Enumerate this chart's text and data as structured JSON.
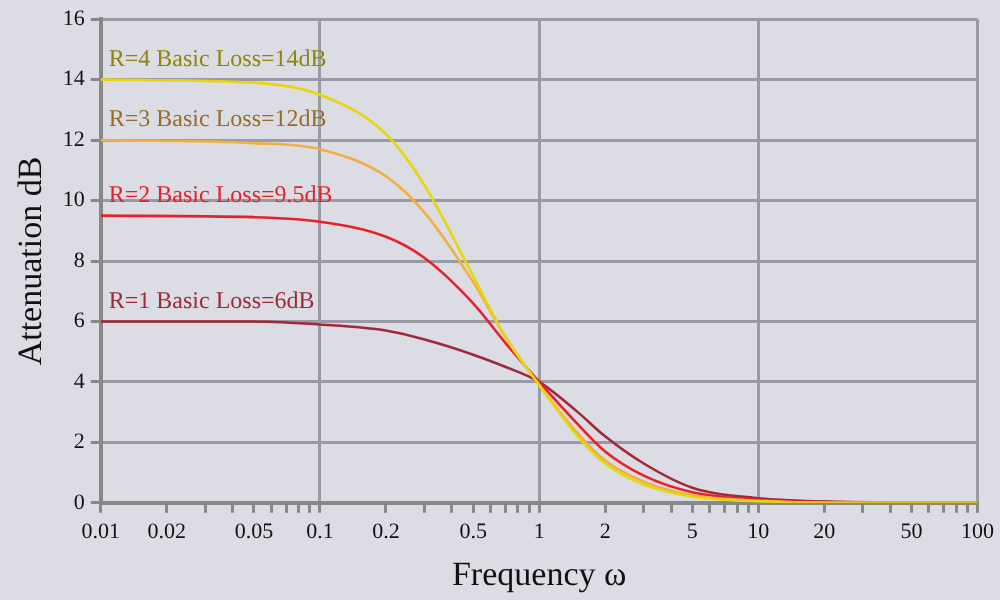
{
  "chart_data": {
    "type": "line",
    "xlabel": "Frequency ω",
    "ylabel": "Attenuation dB",
    "x": [
      0.01,
      0.05,
      0.1,
      0.2,
      0.3,
      0.5,
      0.7,
      1,
      1.5,
      2,
      3,
      5,
      10,
      20,
      100
    ],
    "series": [
      {
        "name": "R=4 Basic Loss=14dB",
        "color": "#e6d60a",
        "values": [
          14,
          13.9,
          13.5,
          12.2,
          10.5,
          7.5,
          5.5,
          3.9,
          2.2,
          1.3,
          0.6,
          0.2,
          0.05,
          0,
          0
        ]
      },
      {
        "name": "R=3 Basic Loss=12dB",
        "color": "#f0b040",
        "values": [
          12,
          11.9,
          11.7,
          10.8,
          9.6,
          7.3,
          5.5,
          3.9,
          2.3,
          1.4,
          0.7,
          0.25,
          0.07,
          0,
          0
        ]
      },
      {
        "name": "R=2 Basic Loss=9.5dB",
        "color": "#e8202a",
        "values": [
          9.5,
          9.45,
          9.3,
          8.8,
          8.1,
          6.6,
          5.3,
          4,
          2.6,
          1.7,
          0.9,
          0.35,
          0.1,
          0.03,
          0
        ]
      },
      {
        "name": "R=1 Basic Loss=6dB",
        "color": "#a02838",
        "values": [
          6,
          6,
          5.9,
          5.7,
          5.4,
          4.9,
          4.5,
          4,
          3,
          2.2,
          1.3,
          0.5,
          0.15,
          0.04,
          0
        ]
      }
    ],
    "log": "x",
    "xlim": [
      0.01,
      100
    ],
    "xticks": [
      0.01,
      0.02,
      {
        "value": 0.03,
        "label": null
      },
      {
        "value": 0.04,
        "label": null
      },
      0.05,
      {
        "value": 0.06,
        "label": null
      },
      {
        "value": 0.07,
        "label": null
      },
      {
        "value": 0.08,
        "label": null
      },
      {
        "value": 0.09,
        "label": null
      },
      0.1,
      0.2,
      {
        "value": 0.3,
        "label": null
      },
      {
        "value": 0.4,
        "label": null
      },
      0.5,
      {
        "value": 0.6,
        "label": null
      },
      {
        "value": 0.7,
        "label": null
      },
      {
        "value": 0.8,
        "label": null
      },
      {
        "value": 0.9,
        "label": null
      },
      1,
      2,
      {
        "value": 3,
        "label": null
      },
      {
        "value": 4,
        "label": null
      },
      5,
      {
        "value": 6,
        "label": null
      },
      {
        "value": 7,
        "label": null
      },
      {
        "value": 8,
        "label": null
      },
      {
        "value": 9,
        "label": null
      },
      10,
      20,
      {
        "value": 30,
        "label": null
      },
      {
        "value": 40,
        "label": null
      },
      50,
      {
        "value": 60,
        "label": null
      },
      {
        "value": 70,
        "label": null
      },
      {
        "value": 80,
        "label": null
      },
      {
        "value": 90,
        "label": null
      },
      100
    ],
    "ylim": [
      0,
      16
    ],
    "yticks": [
      0,
      2,
      4,
      6,
      8,
      10,
      12,
      14,
      16
    ],
    "grid": true,
    "legend": false,
    "marker": "none",
    "line_style": "solid"
  }
}
